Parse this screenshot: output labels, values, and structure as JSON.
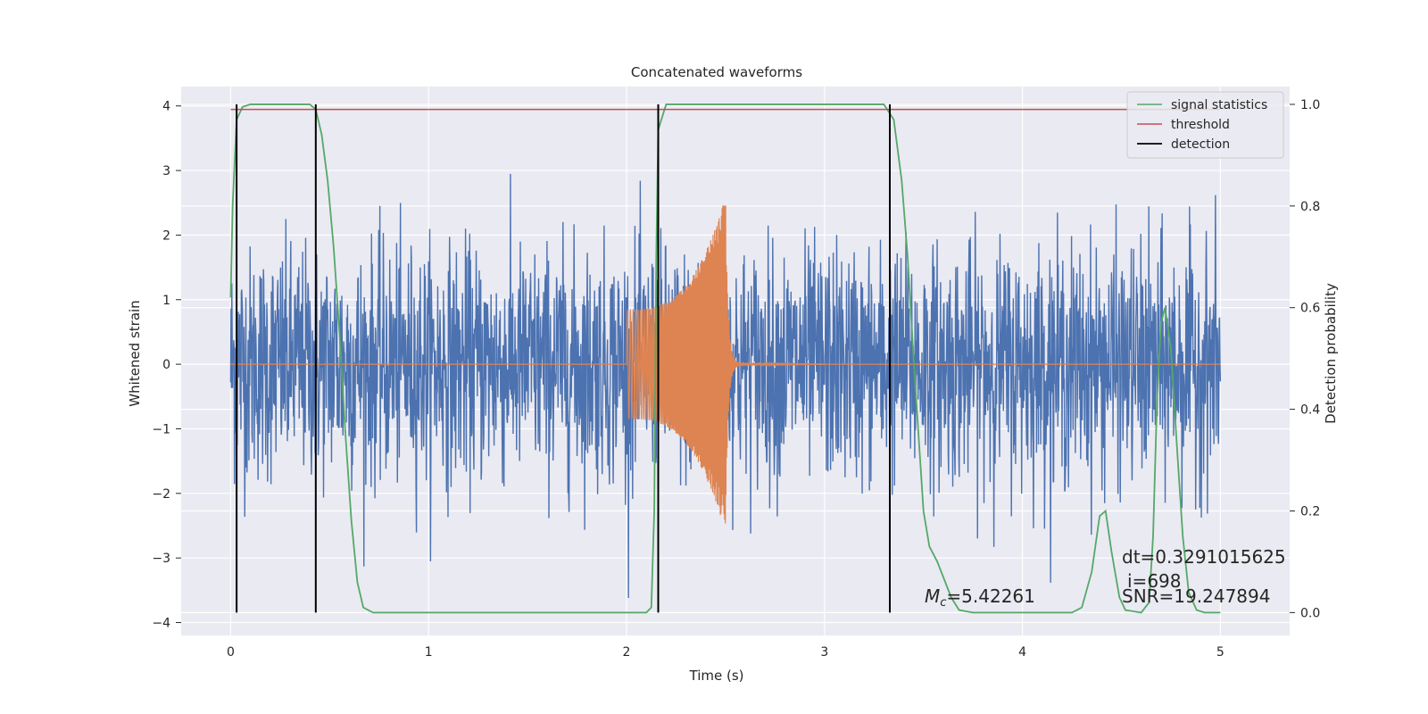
{
  "chart_data": {
    "type": "line",
    "title": "Concatenated waveforms",
    "xlabel": "Time (s)",
    "ylabel_left": "Whitened strain",
    "ylabel_right": "Detection probability",
    "xlim": [
      -0.25,
      5.35
    ],
    "ylim_left": [
      -4.2,
      4.3
    ],
    "ylim_right": [
      -0.045,
      1.035
    ],
    "xticks": [
      "0",
      "1",
      "2",
      "3",
      "4",
      "5"
    ],
    "xtick_values": [
      0,
      1,
      2,
      3,
      4,
      5
    ],
    "yticks_left": [
      "−4",
      "−3",
      "−2",
      "−1",
      "0",
      "1",
      "2",
      "3",
      "4"
    ],
    "ytick_left_values": [
      -4,
      -3,
      -2,
      -1,
      0,
      1,
      2,
      3,
      4
    ],
    "yticks_right": [
      "0.0",
      "0.2",
      "0.4",
      "0.6",
      "0.8",
      "1.0"
    ],
    "ytick_right_values": [
      0.0,
      0.2,
      0.4,
      0.6,
      0.8,
      1.0
    ],
    "grid": true,
    "legend_position": "top-right",
    "legend": [
      {
        "label": "signal statistics",
        "color": "#55a868"
      },
      {
        "label": "threshold",
        "color": "#c44e52"
      },
      {
        "label": "detection",
        "color": "#000000"
      }
    ],
    "colors": {
      "noise": "#4c72b0",
      "signal": "#dd8452",
      "background": "#eaeaf2"
    },
    "noise_series": {
      "x_start": 0,
      "x_end": 5,
      "amplitude_sd": 0.9
    },
    "signal_series": {
      "start": 2.0,
      "merger": 2.5,
      "ringdown_end": 3.0,
      "amp_start": 0.85,
      "amp_peak": 2.6
    },
    "signal_statistics": [
      [
        0.0,
        0.62
      ],
      [
        0.01,
        0.8
      ],
      [
        0.03,
        0.97
      ],
      [
        0.06,
        0.995
      ],
      [
        0.1,
        1.0
      ],
      [
        0.4,
        1.0
      ],
      [
        0.43,
        0.99
      ],
      [
        0.46,
        0.94
      ],
      [
        0.49,
        0.85
      ],
      [
        0.52,
        0.72
      ],
      [
        0.55,
        0.55
      ],
      [
        0.58,
        0.35
      ],
      [
        0.61,
        0.18
      ],
      [
        0.64,
        0.06
      ],
      [
        0.67,
        0.01
      ],
      [
        0.72,
        0.0
      ],
      [
        2.1,
        0.0
      ],
      [
        2.125,
        0.01
      ],
      [
        2.14,
        0.2
      ],
      [
        2.15,
        0.7
      ],
      [
        2.16,
        0.95
      ],
      [
        2.2,
        1.0
      ],
      [
        3.3,
        1.0
      ],
      [
        3.35,
        0.97
      ],
      [
        3.39,
        0.85
      ],
      [
        3.42,
        0.7
      ],
      [
        3.45,
        0.5
      ],
      [
        3.48,
        0.32
      ],
      [
        3.5,
        0.2
      ],
      [
        3.53,
        0.13
      ],
      [
        3.57,
        0.1
      ],
      [
        3.6,
        0.07
      ],
      [
        3.64,
        0.03
      ],
      [
        3.68,
        0.005
      ],
      [
        3.75,
        0.0
      ],
      [
        4.25,
        0.0
      ],
      [
        4.3,
        0.01
      ],
      [
        4.35,
        0.08
      ],
      [
        4.39,
        0.19
      ],
      [
        4.42,
        0.2
      ],
      [
        4.45,
        0.12
      ],
      [
        4.49,
        0.03
      ],
      [
        4.52,
        0.005
      ],
      [
        4.6,
        0.0
      ],
      [
        4.64,
        0.02
      ],
      [
        4.66,
        0.15
      ],
      [
        4.68,
        0.42
      ],
      [
        4.7,
        0.57
      ],
      [
        4.72,
        0.6
      ],
      [
        4.75,
        0.52
      ],
      [
        4.78,
        0.33
      ],
      [
        4.81,
        0.15
      ],
      [
        4.84,
        0.04
      ],
      [
        4.88,
        0.005
      ],
      [
        4.92,
        0.0
      ],
      [
        5.0,
        0.0
      ]
    ],
    "threshold": {
      "value": 0.99,
      "x_start": 0.0,
      "x_end": 5.0
    },
    "detections": [
      0.03,
      0.43,
      2.16,
      3.33
    ],
    "annotations": {
      "mc": "=5.42261",
      "mc_symbol": "M",
      "mc_sub": "c",
      "dt": "dt=0.3291015625",
      "i": "i=698",
      "snr": "SNR=19.247894"
    }
  }
}
